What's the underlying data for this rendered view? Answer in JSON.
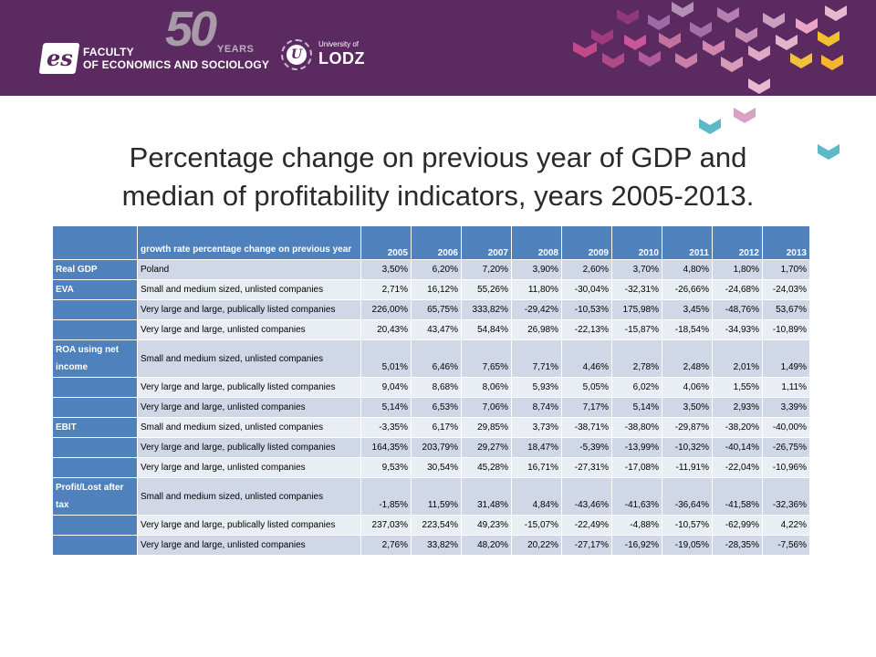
{
  "header": {
    "faculty_line1": "FACULTY",
    "faculty_line2": "OF ECONOMICS AND SOCIOLOGY",
    "logo_letters": "es",
    "anniversary_number": "50",
    "anniversary_word": "YEARS",
    "university_small": "University of",
    "university_big": "LODZ",
    "seal_letter": "U",
    "colors": {
      "banner": "#5b2a60",
      "table_header": "#4f81bd",
      "row_dark": "#d0d8e8",
      "row_light": "#e9edf4"
    }
  },
  "title": {
    "line1": "Percentage change on previous year of GDP and",
    "line2": "median of profitability indicators, years 2005-2013."
  },
  "table": {
    "header_desc": "growth rate percentage change on previous year",
    "years": [
      "2005",
      "2006",
      "2007",
      "2008",
      "2009",
      "2010",
      "2011",
      "2012",
      "2013"
    ],
    "rows": [
      {
        "indicator": "Real GDP",
        "group": "Poland",
        "values": [
          "3,50%",
          "6,20%",
          "7,20%",
          "3,90%",
          "2,60%",
          "3,70%",
          "4,80%",
          "1,80%",
          "1,70%"
        ]
      },
      {
        "indicator": "EVA",
        "group": "Small and medium sized, unlisted companies",
        "values": [
          "2,71%",
          "16,12%",
          "55,26%",
          "11,80%",
          "-30,04%",
          "-32,31%",
          "-26,66%",
          "-24,68%",
          "-24,03%"
        ]
      },
      {
        "indicator": "",
        "group": "Very large and large, publically listed companies",
        "values": [
          "226,00%",
          "65,75%",
          "333,82%",
          "-29,42%",
          "-10,53%",
          "175,98%",
          "3,45%",
          "-48,76%",
          "53,67%"
        ]
      },
      {
        "indicator": "",
        "group": "Very large and large, unlisted companies",
        "values": [
          "20,43%",
          "43,47%",
          "54,84%",
          "26,98%",
          "-22,13%",
          "-15,87%",
          "-18,54%",
          "-34,93%",
          "-10,89%"
        ]
      },
      {
        "indicator": "ROA using net income",
        "group": "Small and medium sized, unlisted companies",
        "values": [
          "5,01%",
          "6,46%",
          "7,65%",
          "7,71%",
          "4,46%",
          "2,78%",
          "2,48%",
          "2,01%",
          "1,49%"
        ]
      },
      {
        "indicator": "",
        "group": "Very large and large, publically listed companies",
        "values": [
          "9,04%",
          "8,68%",
          "8,06%",
          "5,93%",
          "5,05%",
          "6,02%",
          "4,06%",
          "1,55%",
          "1,11%"
        ]
      },
      {
        "indicator": "",
        "group": "Very large and large, unlisted companies",
        "values": [
          "5,14%",
          "6,53%",
          "7,06%",
          "8,74%",
          "7,17%",
          "5,14%",
          "3,50%",
          "2,93%",
          "3,39%"
        ]
      },
      {
        "indicator": "EBIT",
        "group": "Small and medium sized, unlisted companies",
        "values": [
          "-3,35%",
          "6,17%",
          "29,85%",
          "3,73%",
          "-38,71%",
          "-38,80%",
          "-29,87%",
          "-38,20%",
          "-40,00%"
        ]
      },
      {
        "indicator": "",
        "group": "Very large and large, publically listed companies",
        "values": [
          "164,35%",
          "203,79%",
          "29,27%",
          "18,47%",
          "-5,39%",
          "-13,99%",
          "-10,32%",
          "-40,14%",
          "-26,75%"
        ]
      },
      {
        "indicator": "",
        "group": "Very large and large, unlisted companies",
        "values": [
          "9,53%",
          "30,54%",
          "45,28%",
          "16,71%",
          "-27,31%",
          "-17,08%",
          "-11,91%",
          "-22,04%",
          "-10,96%"
        ]
      },
      {
        "indicator": "Profit/Lost after tax",
        "group": "Small and medium sized, unlisted companies",
        "values": [
          "-1,85%",
          "11,59%",
          "31,48%",
          "4,84%",
          "-43,46%",
          "-41,63%",
          "-36,64%",
          "-41,58%",
          "-32,36%"
        ]
      },
      {
        "indicator": "",
        "group": "Very large and large, publically listed companies",
        "values": [
          "237,03%",
          "223,54%",
          "49,23%",
          "-15,07%",
          "-22,49%",
          "-4,88%",
          "-10,57%",
          "-62,99%",
          "4,22%"
        ]
      },
      {
        "indicator": "",
        "group": "Very large and large, unlisted companies",
        "values": [
          "2,76%",
          "33,82%",
          "48,20%",
          "20,22%",
          "-27,17%",
          "-16,92%",
          "-19,05%",
          "-28,35%",
          "-7,56%"
        ]
      }
    ]
  }
}
